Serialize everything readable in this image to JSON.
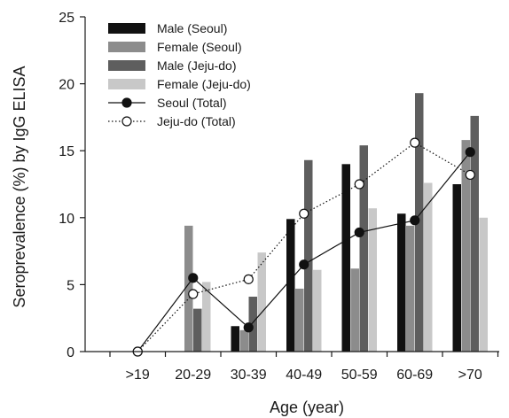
{
  "chart_data": {
    "type": "bar",
    "title": "",
    "xlabel": "Age (year)",
    "ylabel": "Seroprevalence (%) by IgG ELISA",
    "ylim": [
      0,
      25
    ],
    "yticks": [
      0,
      5,
      10,
      15,
      20,
      25
    ],
    "categories": [
      ">19",
      "20-29",
      "30-39",
      "40-49",
      "50-59",
      "60-69",
      ">70"
    ],
    "legend_position": "top-left",
    "grid": false,
    "series": [
      {
        "name": "Male (Seoul)",
        "kind": "bar",
        "color": "#111111",
        "values": [
          0,
          0,
          1.9,
          9.9,
          14.0,
          10.3,
          12.5
        ]
      },
      {
        "name": "Female (Seoul)",
        "kind": "bar",
        "color": "#8c8c8c",
        "values": [
          0,
          9.4,
          1.6,
          4.7,
          6.2,
          9.4,
          15.8
        ]
      },
      {
        "name": "Male (Jeju-do)",
        "kind": "bar",
        "color": "#5e5e5e",
        "values": [
          0,
          3.2,
          4.1,
          14.3,
          15.4,
          19.3,
          17.6
        ]
      },
      {
        "name": "Female (Jeju-do)",
        "kind": "bar",
        "color": "#c8c8c8",
        "values": [
          0,
          5.2,
          7.4,
          6.1,
          10.7,
          12.6,
          10.0
        ]
      },
      {
        "name": "Seoul (Total)",
        "kind": "line",
        "style": "solid",
        "marker": "filled-circle",
        "color": "#111111",
        "values": [
          0,
          5.5,
          1.8,
          6.5,
          8.9,
          9.8,
          14.9
        ]
      },
      {
        "name": "Jeju-do (Total)",
        "kind": "line",
        "style": "dotted",
        "marker": "open-circle",
        "color": "#111111",
        "values": [
          0,
          4.3,
          5.4,
          10.3,
          12.5,
          15.6,
          13.2
        ]
      }
    ]
  }
}
